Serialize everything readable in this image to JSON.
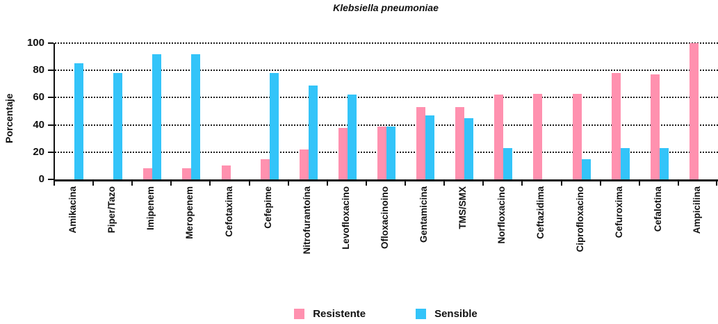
{
  "title": "Klebsiella pneumoniae",
  "y_axis_title": "Porcentaje",
  "legend": {
    "items": [
      {
        "label": "Resistente",
        "color": "#FF91AF"
      },
      {
        "label": "Sensible",
        "color": "#33C4F9"
      }
    ]
  },
  "chart_data": {
    "type": "bar",
    "title": "Klebsiella pneumoniae",
    "xlabel": "",
    "ylabel": "Porcentaje",
    "ylim": [
      0,
      100
    ],
    "yticks": [
      0,
      20,
      40,
      60,
      80,
      100
    ],
    "grid": "horizontal-dotted",
    "legend_position": "bottom",
    "categories": [
      "Amikacina",
      "Piper/Tazo",
      "Imipenem",
      "Meropenem",
      "Cefotaxima",
      "Cefepime",
      "Nitrofurantoína",
      "Levofloxacino",
      "Ofloxacinoino",
      "Gentamicina",
      "TMS/SMX",
      "Norfloxacino",
      "Ceftazidima",
      "Ciprofloxacino",
      "Cefuroxima",
      "Cefalotina",
      "Ampicilina"
    ],
    "series": [
      {
        "name": "Resistente",
        "color": "#FF91AF",
        "values": [
          null,
          null,
          8,
          8,
          10,
          15,
          22,
          38,
          39,
          53,
          53,
          62,
          63,
          63,
          78,
          77,
          100
        ]
      },
      {
        "name": "Sensible",
        "color": "#33C4F9",
        "values": [
          85,
          78,
          92,
          92,
          null,
          78,
          69,
          62,
          39,
          47,
          45,
          23,
          null,
          15,
          23,
          23,
          null
        ]
      }
    ]
  }
}
